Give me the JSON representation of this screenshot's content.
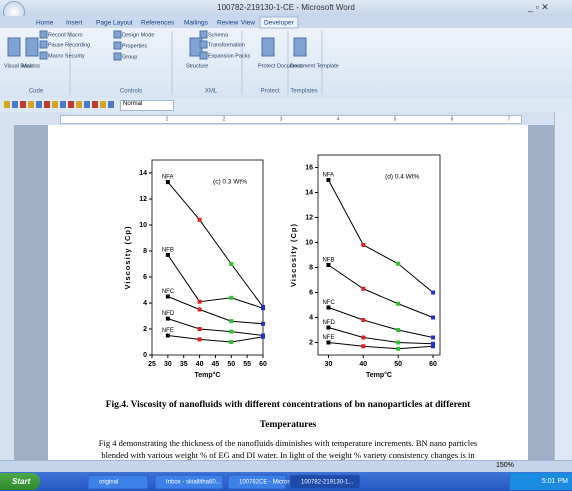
{
  "window": {
    "title": "100782-219130-1-CE - Microsoft Word"
  },
  "ribbon": {
    "tabs": [
      "Home",
      "Insert",
      "Page Layout",
      "References",
      "Mailings",
      "Review",
      "View",
      "Developer"
    ],
    "groups": [
      {
        "name": "Code",
        "items": [
          "Visual Basic",
          "Macros",
          "Record Macro",
          "Pause Recording",
          "Macro Security"
        ]
      },
      {
        "name": "Controls",
        "items": [
          "Design Mode",
          "Properties",
          "Group"
        ]
      },
      {
        "name": "XML",
        "items": [
          "Structure",
          "Schema",
          "Transformation",
          "Expansion Packs"
        ]
      },
      {
        "name": "Protect",
        "items": [
          "Protect Document"
        ]
      },
      {
        "name": "Templates",
        "items": [
          "Document Template"
        ]
      }
    ]
  },
  "toolbar": {
    "style": "Normal"
  },
  "ruler": {
    "marks": [
      1,
      2,
      3,
      4,
      5,
      6,
      7
    ]
  },
  "chart_data": [
    {
      "type": "line",
      "title": "(c) 0.3 Wt%",
      "xlabel": "Temp°C",
      "ylabel": "Viscosity (Cp)",
      "x": [
        30,
        40,
        50,
        60
      ],
      "xlim": [
        25,
        60
      ],
      "xticks": [
        25,
        30,
        35,
        40,
        45,
        50,
        55,
        60
      ],
      "ylim": [
        0,
        15
      ],
      "yticks": [
        0,
        2,
        4,
        6,
        8,
        10,
        12,
        14
      ],
      "marker_colors": [
        "#000000",
        "#e02020",
        "#30c030",
        "#2030d0"
      ],
      "series": [
        {
          "name": "NFA",
          "color": "#000000",
          "values": [
            13.3,
            10.4,
            7.0,
            3.7
          ]
        },
        {
          "name": "NFB",
          "color": "#000000",
          "values": [
            7.7,
            4.1,
            4.4,
            3.6
          ]
        },
        {
          "name": "NFC",
          "color": "#000000",
          "values": [
            4.5,
            3.5,
            2.6,
            2.4
          ]
        },
        {
          "name": "NFD",
          "color": "#000000",
          "values": [
            2.8,
            2.0,
            1.8,
            1.5
          ]
        },
        {
          "name": "NFE",
          "color": "#000000",
          "values": [
            1.5,
            1.2,
            1.0,
            1.4
          ]
        }
      ]
    },
    {
      "type": "line",
      "title": "(d) 0.4 Wt%",
      "xlabel": "Temp°C",
      "ylabel": "Viscosity (Cp)",
      "x": [
        30,
        40,
        50,
        60
      ],
      "xlim": [
        27,
        62
      ],
      "xticks": [
        30,
        40,
        50,
        60
      ],
      "ylim": [
        1,
        17
      ],
      "yticks": [
        2,
        4,
        6,
        8,
        10,
        12,
        14,
        16
      ],
      "marker_colors": [
        "#000000",
        "#e02020",
        "#30c030",
        "#2030d0"
      ],
      "series": [
        {
          "name": "NFA",
          "color": "#000000",
          "values": [
            15.0,
            9.8,
            8.3,
            6.0
          ]
        },
        {
          "name": "NFB",
          "color": "#000000",
          "values": [
            8.2,
            6.3,
            5.1,
            4.0
          ]
        },
        {
          "name": "NFC",
          "color": "#000000",
          "values": [
            4.8,
            3.8,
            3.0,
            2.4
          ]
        },
        {
          "name": "NFD",
          "color": "#000000",
          "values": [
            3.2,
            2.4,
            2.0,
            1.9
          ]
        },
        {
          "name": "NFE",
          "color": "#000000",
          "values": [
            2.0,
            1.7,
            1.5,
            1.7
          ]
        }
      ]
    }
  ],
  "document": {
    "caption": "Fig.4. Viscosity of nanofluids with different concentrations of bn nanoparticles at different",
    "caption_line2": "Temperatures",
    "paragraph": [
      "Fig 4 demonstrating the thickness of the nanofluids diminishes with temperature increments. BN nano particles",
      "blended with various weight % of EG and DI water. In light of the weight % variety consistency changes is in"
    ]
  },
  "status_bar": {
    "zoom": "150%"
  },
  "taskbar": {
    "start": "Start",
    "items": [
      "original",
      "Inbox - skiallitha60...",
      "100782CE - Microso...",
      "100782-219130-1..."
    ],
    "clock": "5:01 PM"
  }
}
